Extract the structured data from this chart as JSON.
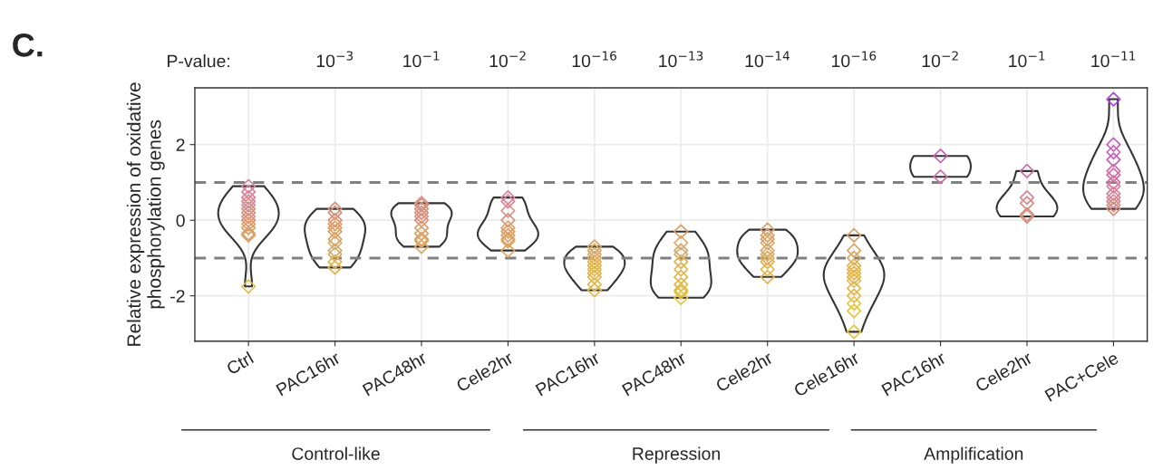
{
  "chart_data": {
    "type": "scatter",
    "ylabel": "Relative expression of oxidative\nphosphorylation genes",
    "categories": [
      "Ctrl",
      "PAC16hr",
      "PAC48hr",
      "Cele2hr",
      "PAC16hr",
      "PAC48hr",
      "Cele2hr",
      "Cele16hr",
      "PAC16hr",
      "Cele2hr",
      "PAC+Cele"
    ],
    "series": [
      {
        "values": [
          0.9,
          0.3,
          0.45,
          0.6,
          -0.7,
          -0.3,
          -0.25,
          -0.4,
          1.7,
          1.3,
          3.2
        ],
        "colors": [
          "#d8849a",
          "#d98f80",
          "#d98f80",
          "#d8849a",
          "#dca860",
          "#dba068",
          "#dba068",
          "#dba068",
          "#c860b8",
          "#d070a8",
          "#b040e0"
        ]
      },
      {
        "values": [
          0.75,
          0.2,
          0.4,
          0.5,
          -0.8,
          -0.6,
          -0.4,
          -0.8,
          1.15,
          0.6,
          2.0
        ],
        "colors": [
          "#d8849a",
          "#d98f80",
          "#d98f80",
          "#d8849a",
          "#dca860",
          "#dca860",
          "#dba068",
          "#dca860",
          "#d070a8",
          "#d8849a",
          "#c860b8"
        ]
      },
      {
        "values": [
          0.6,
          0.0,
          0.3,
          0.25,
          -0.9,
          -0.8,
          -0.5,
          -1.0,
          null,
          0.45,
          1.8
        ],
        "colors": [
          "#d8849a",
          "#d98f80",
          "#d98f80",
          "#d98f80",
          "#dca860",
          "#dca860",
          "#dba068",
          "#dca860",
          null,
          "#d98f80",
          "#c860b8"
        ]
      },
      {
        "values": [
          0.4,
          -0.1,
          0.2,
          0.0,
          -1.0,
          -0.9,
          -0.6,
          -1.2,
          null,
          0.15,
          1.6
        ],
        "colors": [
          "#d98f80",
          "#dba068",
          "#d98f80",
          "#d98f80",
          "#dca860",
          "#dca860",
          "#dca860",
          "#e0b450",
          null,
          "#d98f80",
          "#c860b8"
        ]
      },
      {
        "values": [
          0.3,
          -0.2,
          0.1,
          -0.2,
          -1.1,
          -1.1,
          -0.8,
          -1.3,
          null,
          0.1,
          1.3
        ],
        "colors": [
          "#d98f80",
          "#dba068",
          "#d98f80",
          "#dba068",
          "#e0b450",
          "#e0b450",
          "#dca860",
          "#e0b450",
          null,
          "#d98f80",
          "#d070a8"
        ]
      },
      {
        "values": [
          0.2,
          -0.3,
          0.0,
          -0.3,
          -1.2,
          -1.3,
          -0.9,
          -1.4,
          null,
          null,
          1.2
        ],
        "colors": [
          "#d98f80",
          "#dba068",
          "#d98f80",
          "#dba068",
          "#e0b450",
          "#e0b450",
          "#dca860",
          "#e0b450",
          null,
          null,
          "#d070a8"
        ]
      },
      {
        "values": [
          0.1,
          -0.5,
          -0.2,
          -0.4,
          -1.3,
          -1.5,
          -1.0,
          -1.5,
          null,
          null,
          1.0
        ],
        "colors": [
          "#d98f80",
          "#dba068",
          "#dba068",
          "#dba068",
          "#e0b450",
          "#e0b450",
          "#dca860",
          "#e0b450",
          null,
          null,
          "#d070a8"
        ]
      },
      {
        "values": [
          0.0,
          -0.6,
          -0.35,
          -0.5,
          -1.4,
          -1.7,
          -1.1,
          -1.6,
          null,
          null,
          0.9
        ],
        "colors": [
          "#d98f80",
          "#dca860",
          "#dba068",
          "#dba068",
          "#e0b450",
          "#e2ba45",
          "#e0b450",
          "#e2ba45",
          null,
          null,
          "#d8849a"
        ]
      },
      {
        "values": [
          -0.1,
          -0.8,
          -0.5,
          -0.55,
          -1.5,
          -1.85,
          -1.3,
          -1.8,
          null,
          null,
          0.7
        ],
        "colors": [
          "#dba068",
          "#dca860",
          "#dba068",
          "#dca860",
          "#e0b450",
          "#e2ba45",
          "#e0b450",
          "#e2ba45",
          null,
          null,
          "#d8849a"
        ]
      },
      {
        "values": [
          -0.2,
          -0.9,
          -0.55,
          -0.8,
          -1.7,
          -1.9,
          -1.5,
          -2.0,
          null,
          null,
          0.6
        ],
        "colors": [
          "#dba068",
          "#dca860",
          "#dca860",
          "#dca860",
          "#e2ba45",
          "#e2ba45",
          "#e0b450",
          "#e2ba45",
          null,
          null,
          "#d8849a"
        ]
      },
      {
        "values": [
          -0.35,
          -1.1,
          -0.7,
          null,
          -1.85,
          -2.05,
          null,
          -2.2,
          null,
          null,
          0.5
        ],
        "colors": [
          "#dba068",
          "#e0b450",
          "#dca860",
          null,
          "#e2ba45",
          "#e6c63a",
          null,
          "#e6c63a",
          null,
          null,
          "#d8849a"
        ]
      },
      {
        "values": [
          -0.4,
          -1.25,
          null,
          null,
          null,
          null,
          null,
          -2.4,
          null,
          null,
          0.4
        ],
        "colors": [
          "#dba068",
          "#e0b450",
          null,
          null,
          null,
          null,
          null,
          "#e6c63a",
          null,
          null,
          "#d98f80"
        ]
      },
      {
        "values": [
          0.5,
          null,
          null,
          null,
          null,
          null,
          null,
          -2.95,
          null,
          null,
          0.3
        ],
        "colors": [
          "#d8849a",
          null,
          null,
          null,
          null,
          null,
          null,
          "#e6c63a",
          null,
          null,
          "#d98f80"
        ]
      },
      {
        "values": [
          -1.75,
          null,
          null,
          null,
          null,
          null,
          null,
          null,
          null,
          null,
          null
        ],
        "colors": [
          "#e2ba45",
          null,
          null,
          null,
          null,
          null,
          null,
          null,
          null,
          null,
          null
        ]
      }
    ],
    "ylim": [
      -3.2,
      3.5
    ],
    "yticks": [
      {
        "value": -2,
        "label": "-2"
      },
      0,
      2
    ],
    "grid": true,
    "marker": "diamond",
    "ref_lines": [
      {
        "axis": "y",
        "value": 1,
        "color": "#808080",
        "line_style": "dashed"
      },
      {
        "axis": "y",
        "value": -1,
        "color": "#808080",
        "line_style": "dashed"
      }
    ],
    "annotations": [
      "C.",
      "P-value:",
      "10$^{−3}$",
      "10$^{−1}$",
      "10$^{−2}$",
      "10$^{−16}$",
      "10$^{−13}$",
      "10$^{−14}$",
      "10$^{−16}$",
      "10$^{−2}$",
      "10$^{−1}$",
      "10$^{−11}$",
      "Control-like",
      "Repression",
      "Amplification"
    ]
  }
}
